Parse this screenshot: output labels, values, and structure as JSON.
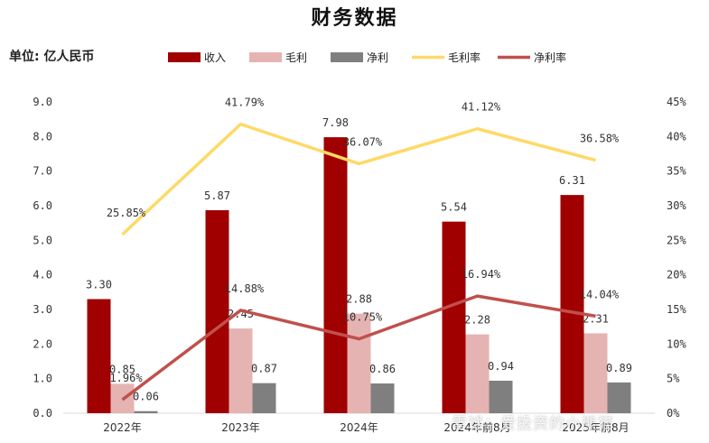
{
  "chart_data": {
    "type": "bar",
    "title": "财务数据",
    "unit_label": "单位: 亿人民币",
    "categories": [
      "2022年",
      "2023年",
      "2024年",
      "2024年前8月",
      "2025年前8月"
    ],
    "series": [
      {
        "name": "收入",
        "kind": "bar",
        "axis": "left",
        "color": "#a00000",
        "values": [
          3.3,
          5.87,
          7.98,
          5.54,
          6.31
        ],
        "labels": [
          "3.30",
          "5.87",
          "7.98",
          "5.54",
          "6.31"
        ]
      },
      {
        "name": "毛利",
        "kind": "bar",
        "axis": "left",
        "color": "#e6b3b3",
        "values": [
          0.85,
          2.45,
          2.88,
          2.28,
          2.31
        ],
        "labels": [
          "0.85",
          "2.45",
          "2.88",
          "2.28",
          "2.31"
        ]
      },
      {
        "name": "净利",
        "kind": "bar",
        "axis": "left",
        "color": "#7f7f7f",
        "values": [
          0.06,
          0.87,
          0.86,
          0.94,
          0.89
        ],
        "labels": [
          "0.06",
          "0.87",
          "0.86",
          "0.94",
          "0.89"
        ]
      },
      {
        "name": "毛利率",
        "kind": "line",
        "axis": "right",
        "color": "#ffd966",
        "values": [
          25.85,
          41.79,
          36.07,
          41.12,
          36.58
        ],
        "labels": [
          "25.85%",
          "41.79%",
          "36.07%",
          "41.12%",
          "36.58%"
        ]
      },
      {
        "name": "净利率",
        "kind": "line",
        "axis": "right",
        "color": "#c0504d",
        "values": [
          1.96,
          14.88,
          10.75,
          16.94,
          14.04
        ],
        "labels": [
          "1.96%",
          "14.88%",
          "10.75%",
          "16.94%",
          "14.04%"
        ]
      }
    ],
    "y_left": {
      "ylim": [
        0,
        9
      ],
      "ticks": [
        "0.0",
        "1.0",
        "2.0",
        "3.0",
        "4.0",
        "5.0",
        "6.0",
        "7.0",
        "8.0",
        "9.0"
      ]
    },
    "y_right": {
      "ylim": [
        0,
        45
      ],
      "ticks": [
        "0%",
        "5%",
        "10%",
        "15%",
        "20%",
        "25%",
        "30%",
        "35%",
        "40%",
        "45%"
      ]
    },
    "grid": false,
    "legend_position": "top"
  },
  "watermark": "雪球：爱投资的小熊猫"
}
